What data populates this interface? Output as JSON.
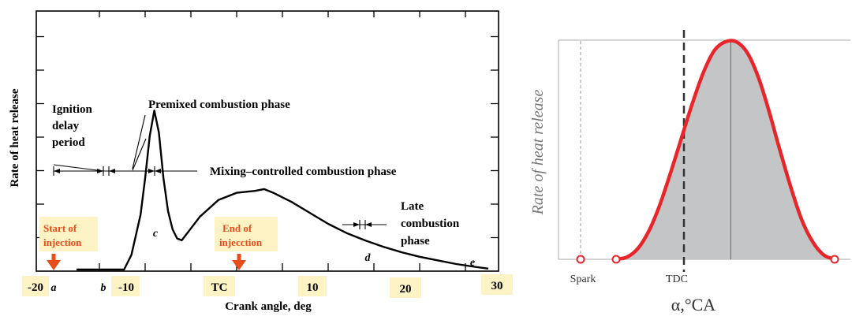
{
  "chart_data": [
    {
      "type": "line",
      "title": "",
      "xlabel": "Crank angle, deg",
      "ylabel": "Rate of heat release",
      "xlim": [
        -20,
        30
      ],
      "x_ticks": [
        "-20",
        "-10",
        "TC",
        "10",
        "20",
        "30"
      ],
      "point_labels": [
        "a",
        "b",
        "c",
        "d",
        "e"
      ],
      "grid": false,
      "series": [
        {
          "x": [
            -17.5,
            -12.3,
            -11.5,
            -10.5,
            -10.0,
            -9.5,
            -9.0,
            -8.5,
            -8.0,
            -7.5,
            -7.0,
            -6.5,
            -6.0,
            -4.0,
            -2.0,
            0.0,
            2.0,
            3.0,
            4.0,
            6.0,
            8.0,
            10.0,
            12.0,
            14.0,
            16.0,
            18.0,
            20.0,
            22.0,
            24.0,
            26.0,
            27.5
          ],
          "y": [
            0.0,
            0.0,
            0.08,
            0.3,
            0.5,
            0.73,
            0.87,
            0.75,
            0.5,
            0.32,
            0.22,
            0.17,
            0.16,
            0.29,
            0.38,
            0.42,
            0.43,
            0.44,
            0.42,
            0.37,
            0.31,
            0.25,
            0.2,
            0.16,
            0.125,
            0.095,
            0.07,
            0.05,
            0.03,
            0.015,
            0.005
          ]
        }
      ],
      "annotations": {
        "ignition": [
          "Ignition",
          "delay",
          "period"
        ],
        "premixed": "Premixed combustion phase",
        "mixing": "Mixing–controlled combustion phase",
        "late": [
          "Late",
          "combustion",
          "phase"
        ],
        "start_injection": [
          "Start of",
          "injection"
        ],
        "end_injection": [
          "End of",
          "injecction"
        ]
      },
      "marker_color": "#e84d1c",
      "label_highlight_color": "#fdf3c4"
    },
    {
      "type": "area",
      "title": "",
      "xlabel": "α,°CA",
      "ylabel": "Rate of heat release",
      "x_ticks": [
        "Spark",
        "TDC"
      ],
      "grid": false,
      "series": [
        {
          "x": [
            0,
            5,
            10,
            15,
            20,
            25,
            30,
            35,
            40,
            45,
            50,
            55,
            60,
            65,
            70,
            75,
            80,
            85,
            90,
            95,
            100
          ],
          "y": [
            0.0,
            0.01,
            0.05,
            0.13,
            0.25,
            0.4,
            0.56,
            0.72,
            0.86,
            0.96,
            1.0,
            1.0,
            0.95,
            0.84,
            0.68,
            0.5,
            0.33,
            0.18,
            0.08,
            0.02,
            0.0
          ]
        }
      ],
      "curve_color": "#e8262a",
      "fill_color": "#c4c5c7"
    }
  ]
}
